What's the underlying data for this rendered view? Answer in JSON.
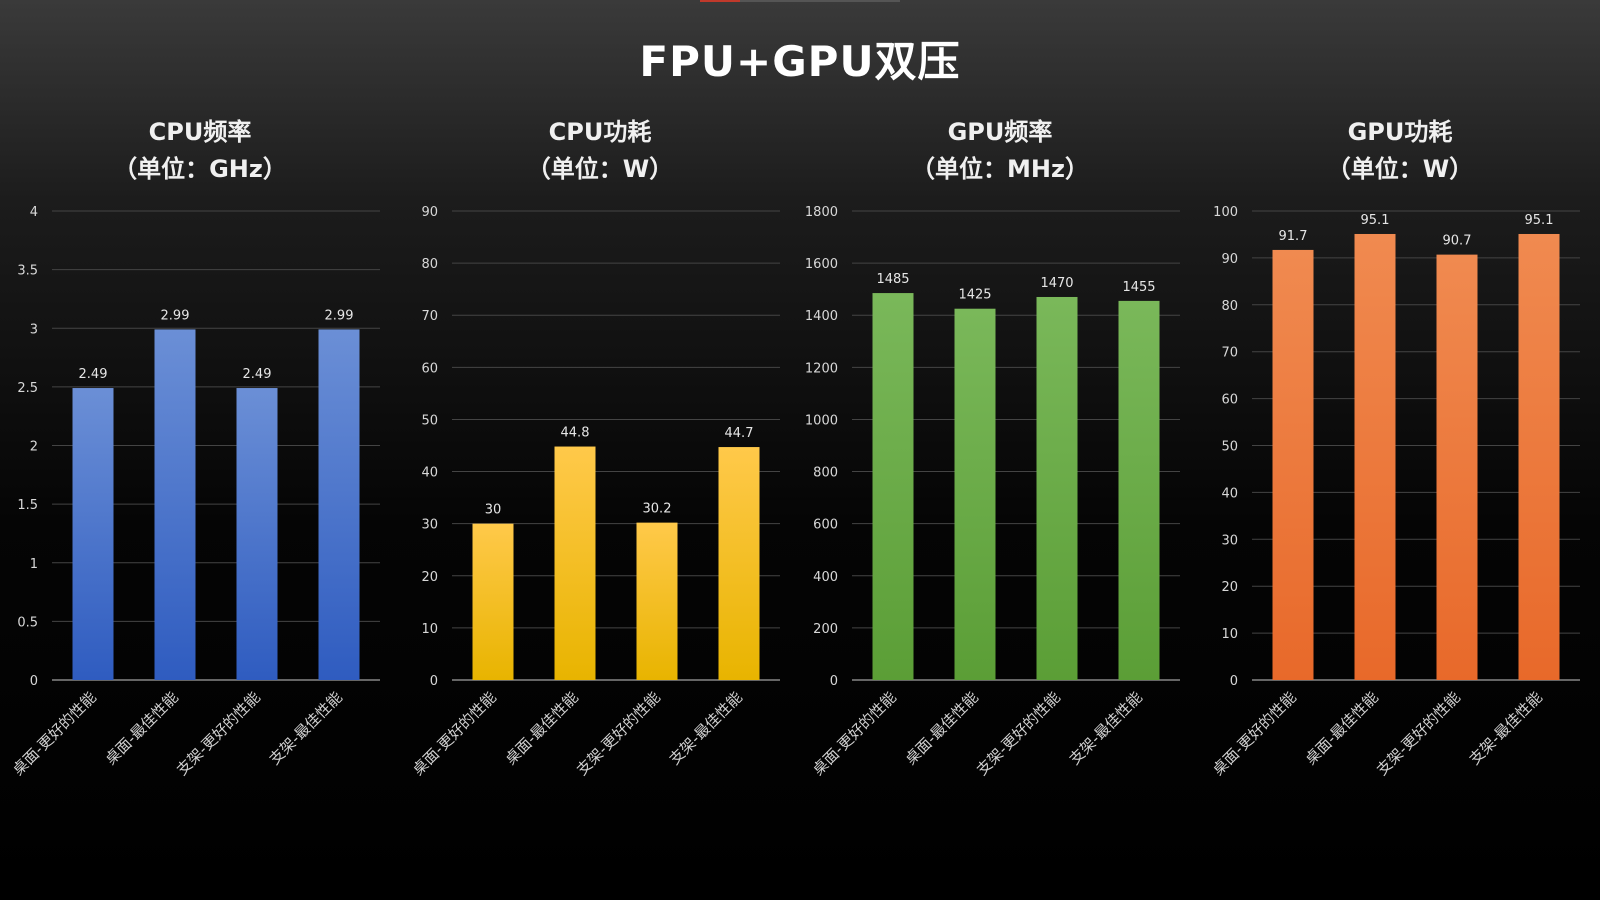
{
  "main_title": "FPU+GPU双压",
  "chart_data": [
    {
      "type": "bar",
      "title_line1": "CPU频率",
      "title_line2": "（单位：GHz）",
      "categories": [
        "桌面-更好的性能",
        "桌面-最佳性能",
        "支架-更好的性能",
        "支架-最佳性能"
      ],
      "values": [
        2.49,
        2.99,
        2.49,
        2.99
      ],
      "ylim": [
        0,
        4
      ],
      "yticks": [
        "0",
        "0.5",
        "1",
        "1.5",
        "2",
        "2.5",
        "3",
        "3.5",
        "4"
      ],
      "grid": true,
      "color_top": "#6b8fd6",
      "color_bottom": "#2f5cc0"
    },
    {
      "type": "bar",
      "title_line1": "CPU功耗",
      "title_line2": "（单位：W）",
      "categories": [
        "桌面-更好的性能",
        "桌面-最佳性能",
        "支架-更好的性能",
        "支架-最佳性能"
      ],
      "values": [
        30,
        44.8,
        30.2,
        44.7
      ],
      "ylim": [
        0,
        90
      ],
      "yticks": [
        "0",
        "10",
        "20",
        "30",
        "40",
        "50",
        "60",
        "70",
        "80",
        "90"
      ],
      "grid": true,
      "color_top": "#ffc94a",
      "color_bottom": "#e8b400"
    },
    {
      "type": "bar",
      "title_line1": "GPU频率",
      "title_line2": "（单位：MHz）",
      "categories": [
        "桌面-更好的性能",
        "桌面-最佳性能",
        "支架-更好的性能",
        "支架-最佳性能"
      ],
      "values": [
        1485,
        1425,
        1470,
        1455
      ],
      "ylim": [
        0,
        1800
      ],
      "yticks": [
        "0",
        "200",
        "400",
        "600",
        "800",
        "1000",
        "1200",
        "1400",
        "1600",
        "1800"
      ],
      "grid": true,
      "color_top": "#7ab85a",
      "color_bottom": "#5b9e36"
    },
    {
      "type": "bar",
      "title_line1": "GPU功耗",
      "title_line2": "（单位：W）",
      "categories": [
        "桌面-更好的性能",
        "桌面-最佳性能",
        "支架-更好的性能",
        "支架-最佳性能"
      ],
      "values": [
        91.7,
        95.1,
        90.7,
        95.1
      ],
      "ylim": [
        0,
        100
      ],
      "yticks": [
        "0",
        "10",
        "20",
        "30",
        "40",
        "50",
        "60",
        "70",
        "80",
        "90",
        "100"
      ],
      "grid": true,
      "color_top": "#f08a50",
      "color_bottom": "#e8692a"
    }
  ]
}
